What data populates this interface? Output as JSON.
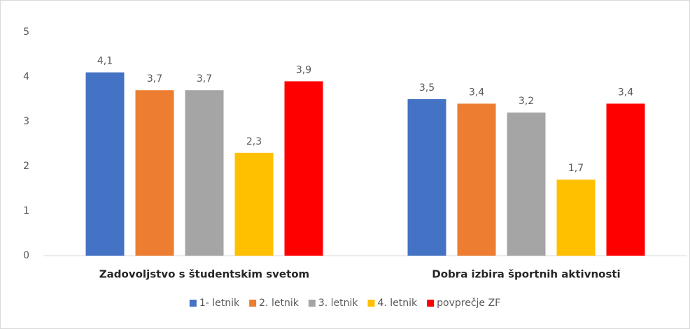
{
  "chart_data": {
    "type": "bar",
    "categories": [
      "Zadovoljstvo s študentskim svetom",
      "Dobra izbira športnih aktivnosti"
    ],
    "series": [
      {
        "name": "1- letnik",
        "color": "#4472c4",
        "values": [
          4.1,
          3.5
        ],
        "value_labels": [
          "4,1",
          "3,5"
        ]
      },
      {
        "name": "2. letnik",
        "color": "#ed7d31",
        "values": [
          3.7,
          3.4
        ],
        "value_labels": [
          "3,7",
          "3,4"
        ]
      },
      {
        "name": "3. letnik",
        "color": "#a5a5a5",
        "values": [
          3.7,
          3.2
        ],
        "value_labels": [
          "3,7",
          "3,2"
        ]
      },
      {
        "name": "4. letnik",
        "color": "#ffc000",
        "values": [
          2.3,
          1.7
        ],
        "value_labels": [
          "2,3",
          "1,7"
        ]
      },
      {
        "name": "povprečje ZF",
        "color": "#ff0000",
        "values": [
          3.9,
          3.4
        ],
        "value_labels": [
          "3,9",
          "3,4"
        ]
      }
    ],
    "ylim": [
      0,
      5
    ],
    "yticks": [
      0,
      1,
      2,
      3,
      4,
      5
    ],
    "grid": false,
    "legend": "bottom"
  }
}
